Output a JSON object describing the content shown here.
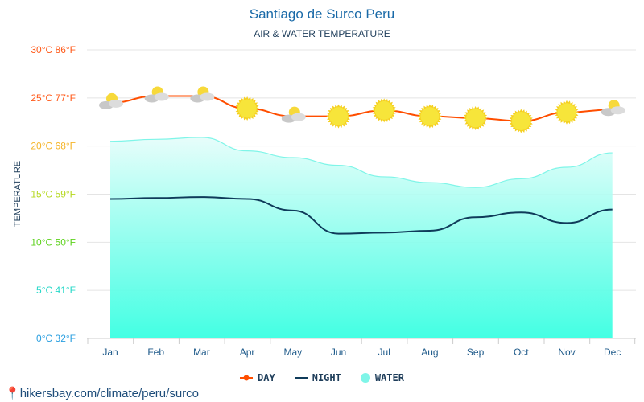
{
  "title": "Santiago de Surco Peru",
  "subtitle": "AIR & WATER TEMPERATURE",
  "footer": "hikersbay.com/climate/peru/surco",
  "colors": {
    "day": "#ff4e00",
    "night": "#0f3b5a",
    "water": "#7ff5e8"
  },
  "chart_data": {
    "type": "line",
    "title": "Santiago de Surco Peru",
    "subtitle": "AIR & WATER TEMPERATURE",
    "ylabel": "TEMPERATURE",
    "ylim": [
      0,
      30
    ],
    "yticks": [
      {
        "v": 0,
        "label": "0°C 32°F",
        "color": "#2a9fe0"
      },
      {
        "v": 5,
        "label": "5°C 41°F",
        "color": "#27d8c8"
      },
      {
        "v": 10,
        "label": "10°C 50°F",
        "color": "#5ed21e"
      },
      {
        "v": 15,
        "label": "15°C 59°F",
        "color": "#b5d81e"
      },
      {
        "v": 20,
        "label": "20°C 68°F",
        "color": "#f5b52a"
      },
      {
        "v": 25,
        "label": "25°C 77°F",
        "color": "#ff5a1a"
      },
      {
        "v": 30,
        "label": "30°C 86°F",
        "color": "#ff5a1a"
      }
    ],
    "categories": [
      "Jan",
      "Feb",
      "Mar",
      "Apr",
      "May",
      "Jun",
      "Jul",
      "Aug",
      "Sep",
      "Oct",
      "Nov",
      "Dec"
    ],
    "series": [
      {
        "name": "DAY",
        "values": [
          24.5,
          25.2,
          25.2,
          23.9,
          23.1,
          23.1,
          23.7,
          23.1,
          22.9,
          22.6,
          23.5,
          23.8
        ]
      },
      {
        "name": "NIGHT",
        "values": [
          14.5,
          14.6,
          14.7,
          14.5,
          13.3,
          10.9,
          11.0,
          11.2,
          12.6,
          13.1,
          12.0,
          13.4
        ]
      },
      {
        "name": "WATER",
        "values": [
          20.5,
          20.7,
          20.9,
          19.5,
          18.8,
          18.0,
          16.8,
          16.2,
          15.7,
          16.6,
          17.8,
          19.3
        ]
      }
    ],
    "weather_icons": [
      "partly-cloudy",
      "partly-cloudy",
      "partly-cloudy",
      "sun",
      "partly-cloudy",
      "sun",
      "sun",
      "sun",
      "sun",
      "sun",
      "sun",
      "partly-cloudy"
    ],
    "legend_position": "bottom"
  }
}
